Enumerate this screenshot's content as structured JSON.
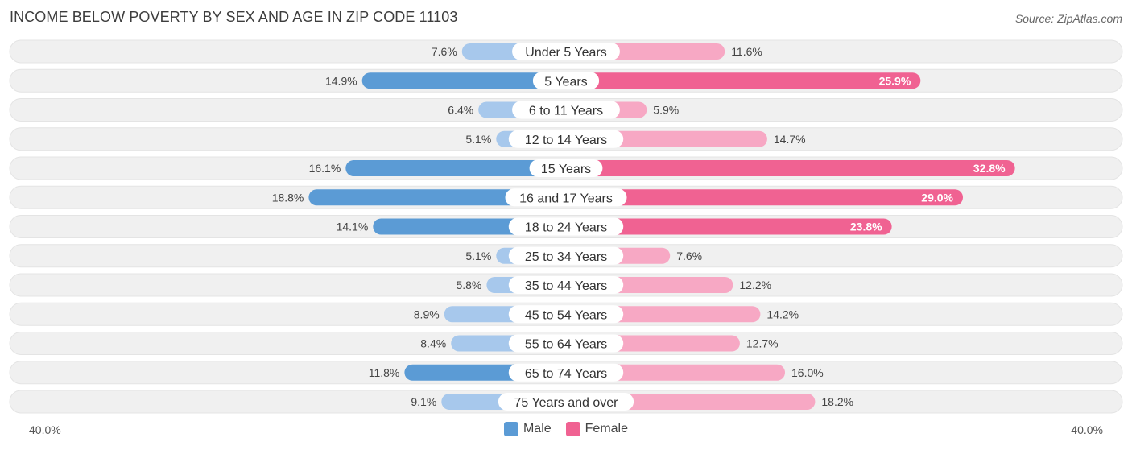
{
  "header": {
    "title": "INCOME BELOW POVERTY BY SEX AND AGE IN ZIP CODE 11103",
    "source": "Source: ZipAtlas.com"
  },
  "axis": {
    "left_label": "40.0%",
    "right_label": "40.0%"
  },
  "legend": {
    "male_label": "Male",
    "female_label": "Female"
  },
  "colors": {
    "male_strong": "#5b9bd5",
    "male_light": "#a7c8ec",
    "female_strong": "#f06292",
    "female_light": "#f7a8c4",
    "row_bg": "#f0f0f0",
    "male_swatch": "#5b9bd5",
    "female_swatch": "#f06292"
  },
  "chart_data": {
    "type": "bar",
    "orientation": "horizontal-diverging",
    "title": "INCOME BELOW POVERTY BY SEX AND AGE IN ZIP CODE 11103",
    "xlim": [
      -40,
      40
    ],
    "categories": [
      "Under 5 Years",
      "5 Years",
      "6 to 11 Years",
      "12 to 14 Years",
      "15 Years",
      "16 and 17 Years",
      "18 to 24 Years",
      "25 to 34 Years",
      "35 to 44 Years",
      "45 to 54 Years",
      "55 to 64 Years",
      "65 to 74 Years",
      "75 Years and over"
    ],
    "series": [
      {
        "name": "Male",
        "values": [
          7.6,
          14.9,
          6.4,
          5.1,
          16.1,
          18.8,
          14.1,
          5.1,
          5.8,
          8.9,
          8.4,
          11.8,
          9.1
        ],
        "labels": [
          "7.6%",
          "14.9%",
          "6.4%",
          "5.1%",
          "16.1%",
          "18.8%",
          "14.1%",
          "5.1%",
          "5.8%",
          "8.9%",
          "8.4%",
          "11.8%",
          "9.1%"
        ]
      },
      {
        "name": "Female",
        "values": [
          11.6,
          25.9,
          5.9,
          14.7,
          32.8,
          29.0,
          23.8,
          7.6,
          12.2,
          14.2,
          12.7,
          16.0,
          18.2
        ],
        "labels": [
          "11.6%",
          "25.9%",
          "5.9%",
          "14.7%",
          "32.8%",
          "29.0%",
          "23.8%",
          "7.6%",
          "12.2%",
          "14.2%",
          "12.7%",
          "16.0%",
          "18.2%"
        ]
      }
    ]
  }
}
